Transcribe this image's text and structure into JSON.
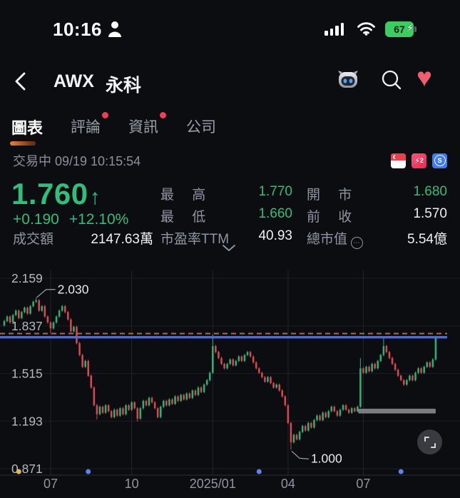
{
  "status_bar": {
    "time": "10:16",
    "battery_percent": "67",
    "battery_color": "#3bcd62"
  },
  "header": {
    "symbol": "AWX",
    "name": "永科",
    "icons": [
      "robot-assistant-icon",
      "search-icon",
      "heart-favorite-icon"
    ],
    "heart_color": "#ed5f6f"
  },
  "tabs": [
    {
      "label": "圖表",
      "active": true,
      "badge": false
    },
    {
      "label": "評論",
      "active": false,
      "badge": true
    },
    {
      "label": "資訊",
      "active": false,
      "badge": true
    },
    {
      "label": "公司",
      "active": false,
      "badge": false
    }
  ],
  "session": {
    "status_text": "交易中 09/19 10:15:54",
    "badges": [
      "singapore-flag-icon",
      "lightning-level2-icon",
      "s-market-icon"
    ],
    "bolt_glyph": "⚡",
    "bolt_level": "2",
    "s_letter": "S"
  },
  "quote": {
    "price": "1.760",
    "arrow": "↑",
    "change": "+0.190",
    "change_pct": "+12.10%",
    "high_label": "最 高",
    "high": "1.770",
    "low_label": "最 低",
    "low": "1.660",
    "open_label": "開 市",
    "open": "1.680",
    "prev_label": "前 收",
    "prev": "1.570",
    "turnover_label": "成交額",
    "turnover": "2147.63萬",
    "pe_label": "市盈率TTM",
    "pe": "40.93",
    "mktcap_label": "總市值",
    "mktcap_dots": "⋯",
    "mktcap": "5.54億",
    "up_color": "#31bd7c"
  },
  "chart_data": {
    "type": "candlestick",
    "title": "",
    "y_ticks": [
      "2.159",
      "1.837",
      "1.515",
      "1.193",
      "0.871"
    ],
    "y_tick_values": [
      2.159,
      1.837,
      1.515,
      1.193,
      0.871
    ],
    "x_ticks": [
      {
        "label": "07",
        "index": 16
      },
      {
        "label": "10",
        "index": 44
      },
      {
        "label": "2025/01",
        "index": 72
      },
      {
        "label": "04",
        "index": 98
      },
      {
        "label": "07",
        "index": 124
      }
    ],
    "grid": true,
    "up_color": "#2fae74",
    "down_color": "#d5484f",
    "current_price_line": {
      "price": 1.76,
      "color": "#4a6af2"
    },
    "dashed_line": {
      "price": 1.785,
      "color": "#b06a42"
    },
    "gray_zone": {
      "start_index": 122,
      "end_index": 149,
      "price_top": 1.277,
      "price_bottom": 1.245,
      "color": "#87878b"
    },
    "event_dots": [
      {
        "index": 5,
        "color": "#e7b54b"
      },
      {
        "index": 29,
        "color": "#5b82f0"
      },
      {
        "index": 88,
        "color": "#5b82f0"
      },
      {
        "index": 137,
        "color": "#5b82f0"
      }
    ],
    "annotations": [
      {
        "text": "2.030",
        "candle_index": 11,
        "anchor": "high"
      },
      {
        "text": "1.000",
        "candle_index": 99,
        "anchor": "low"
      }
    ],
    "open_first": 1.84,
    "closes": [
      1.87,
      1.9,
      1.86,
      1.91,
      1.94,
      1.89,
      1.93,
      1.96,
      1.92,
      1.97,
      2.0,
      2.01,
      1.94,
      1.97,
      1.9,
      1.86,
      1.82,
      1.86,
      1.9,
      1.94,
      1.97,
      1.93,
      1.88,
      1.8,
      1.83,
      1.72,
      1.64,
      1.56,
      1.6,
      1.5,
      1.42,
      1.3,
      1.24,
      1.29,
      1.25,
      1.3,
      1.26,
      1.22,
      1.27,
      1.23,
      1.28,
      1.24,
      1.3,
      1.27,
      1.32,
      1.28,
      1.21,
      1.28,
      1.33,
      1.3,
      1.35,
      1.32,
      1.28,
      1.22,
      1.29,
      1.33,
      1.3,
      1.34,
      1.31,
      1.36,
      1.33,
      1.37,
      1.34,
      1.38,
      1.35,
      1.4,
      1.37,
      1.42,
      1.39,
      1.44,
      1.47,
      1.52,
      1.7,
      1.66,
      1.62,
      1.58,
      1.55,
      1.58,
      1.61,
      1.57,
      1.6,
      1.63,
      1.6,
      1.64,
      1.66,
      1.63,
      1.59,
      1.55,
      1.52,
      1.49,
      1.46,
      1.49,
      1.45,
      1.42,
      1.44,
      1.4,
      1.36,
      1.3,
      1.18,
      1.05,
      1.1,
      1.07,
      1.12,
      1.16,
      1.13,
      1.18,
      1.15,
      1.2,
      1.23,
      1.2,
      1.25,
      1.22,
      1.26,
      1.29,
      1.26,
      1.23,
      1.27,
      1.3,
      1.27,
      1.25,
      1.28,
      1.26,
      1.29,
      1.55,
      1.52,
      1.56,
      1.53,
      1.58,
      1.55,
      1.6,
      1.64,
      1.7,
      1.66,
      1.62,
      1.58,
      1.54,
      1.5,
      1.47,
      1.44,
      1.47,
      1.5,
      1.47,
      1.52,
      1.55,
      1.52,
      1.56,
      1.59,
      1.56,
      1.61,
      1.76
    ],
    "wick_overrides": {
      "11": {
        "high": 2.03
      },
      "16": {
        "low": 1.785
      },
      "32": {
        "low": 1.205
      },
      "46": {
        "low": 1.19
      },
      "72": {
        "high": 1.78
      },
      "99": {
        "low": 1.0
      },
      "123": {
        "high": 1.62
      },
      "131": {
        "high": 1.76
      },
      "149": {
        "high": 1.77
      }
    }
  }
}
